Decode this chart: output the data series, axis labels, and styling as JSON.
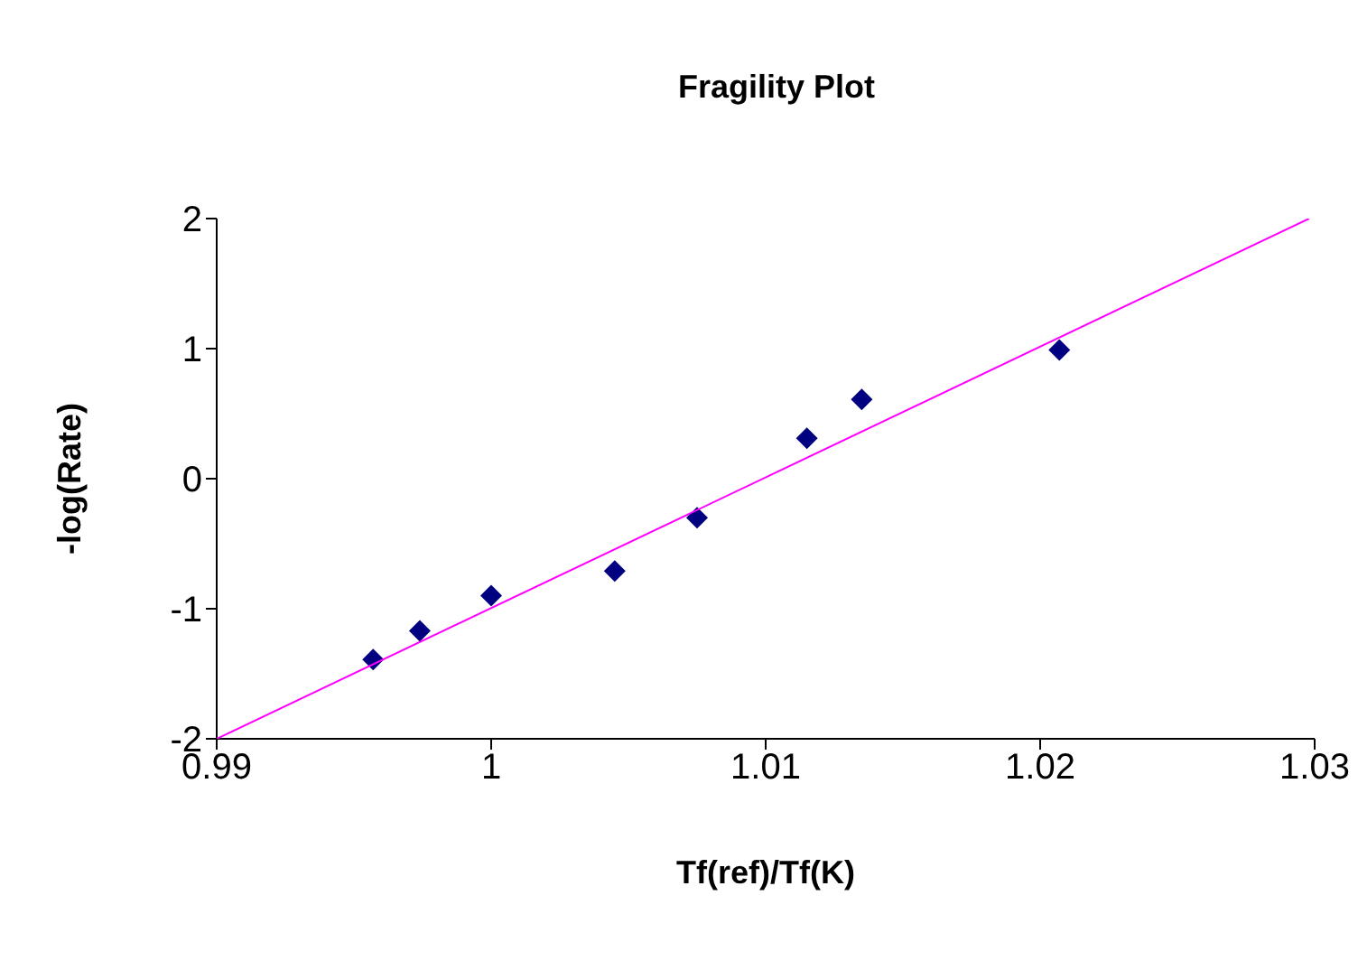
{
  "chart_data": {
    "type": "scatter",
    "title": "Fragility Plot",
    "xlabel": "Tf(ref)/Tf(K)",
    "ylabel": "-log(Rate)",
    "xlim": [
      0.99,
      1.03
    ],
    "xticks": [
      0.99,
      1,
      1.01,
      1.02,
      1.03
    ],
    "ylim": [
      -2,
      2
    ],
    "yticks": [
      -2,
      -1,
      0,
      1,
      2
    ],
    "grid": false,
    "legend": false,
    "marker": "diamond",
    "series": [
      {
        "color": "#000080",
        "x": [
          0.9957,
          0.9974,
          1.0,
          1.0045,
          1.0075,
          1.0115,
          1.0135,
          1.0207
        ],
        "values": [
          -1.39,
          -1.17,
          -0.9,
          -0.71,
          -0.3,
          0.31,
          0.61,
          0.99
        ]
      },
      {
        "type": "line",
        "color": "#ff00ff",
        "marker": "none",
        "x": [
          0.99,
          1.0298
        ],
        "values": [
          -2,
          2
        ]
      }
    ]
  }
}
